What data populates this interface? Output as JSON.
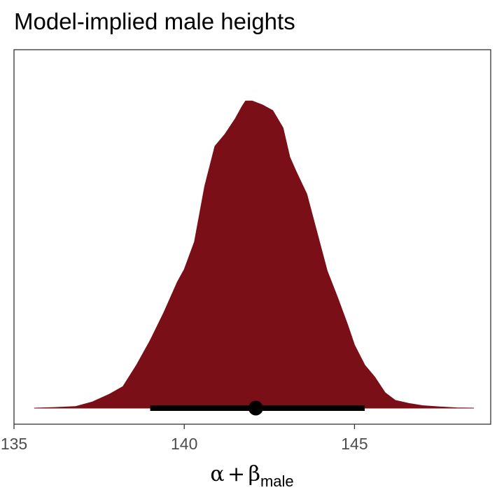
{
  "chart_data": {
    "type": "area",
    "title": "Model-implied male heights",
    "xlabel": {
      "symbol_alpha": "α",
      "operator": "+",
      "symbol_beta": "β",
      "subscript": "male"
    },
    "ylabel": "",
    "xlim": [
      135,
      149
    ],
    "ylim": [
      0,
      1
    ],
    "x_ticks": [
      135,
      140,
      145
    ],
    "x_tick_labels": [
      "135",
      "140",
      "145"
    ],
    "y_ticks": [],
    "grid": false,
    "legend": "none",
    "density": {
      "name": "posterior density",
      "color": "#7a0f18",
      "x": [
        135.6,
        136.2,
        136.8,
        137.3,
        137.8,
        138.2,
        138.6,
        139.0,
        139.4,
        139.8,
        140.0,
        140.3,
        140.6,
        140.9,
        141.2,
        141.5,
        141.7,
        141.8,
        142.0,
        142.3,
        142.6,
        142.9,
        143.1,
        143.3,
        143.6,
        143.9,
        144.2,
        144.5,
        144.8,
        145.0,
        145.3,
        145.6,
        145.9,
        146.2,
        146.6,
        147.0,
        147.5,
        148.0,
        148.5
      ],
      "y": [
        0.0,
        0.002,
        0.005,
        0.02,
        0.045,
        0.07,
        0.14,
        0.22,
        0.31,
        0.41,
        0.45,
        0.54,
        0.72,
        0.85,
        0.89,
        0.94,
        0.98,
        0.997,
        0.997,
        0.984,
        0.966,
        0.91,
        0.815,
        0.765,
        0.695,
        0.57,
        0.445,
        0.36,
        0.27,
        0.205,
        0.14,
        0.1,
        0.05,
        0.025,
        0.015,
        0.008,
        0.004,
        0.001,
        0.0
      ]
    },
    "point_interval": {
      "point": 142.1,
      "lower": 139.0,
      "upper": 145.3,
      "color": "#000000"
    }
  }
}
